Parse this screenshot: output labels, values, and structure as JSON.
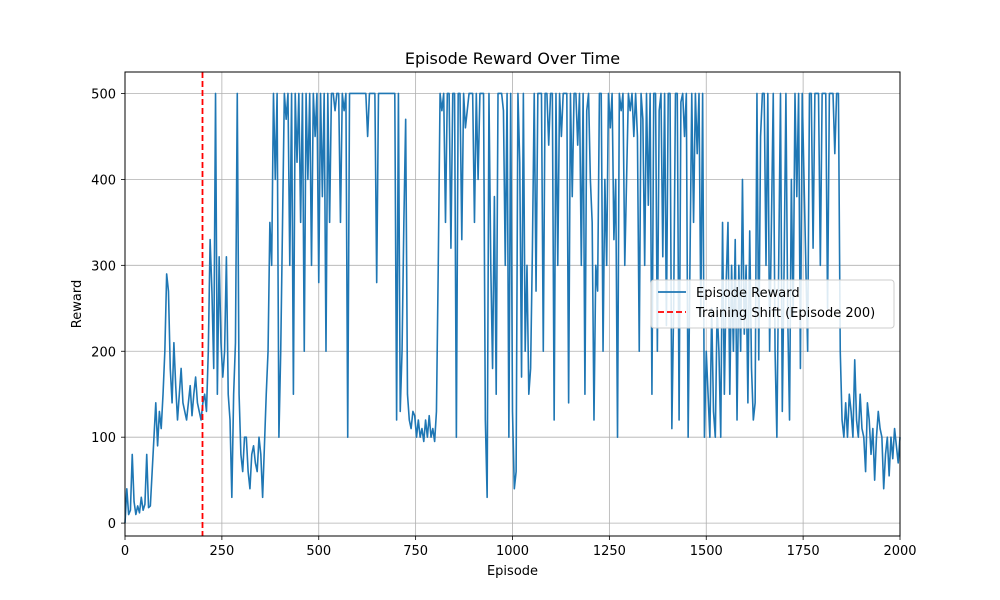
{
  "chart_data": {
    "type": "line",
    "title": "Episode Reward Over Time",
    "xlabel": "Episode",
    "ylabel": "Reward",
    "xlim": [
      0,
      2000
    ],
    "ylim": [
      -15,
      525
    ],
    "xticks": [
      0,
      250,
      500,
      750,
      1000,
      1250,
      1500,
      1750,
      2000
    ],
    "yticks": [
      0,
      100,
      200,
      300,
      400,
      500
    ],
    "grid": true,
    "legend_position": "center-right",
    "series": [
      {
        "name": "Episode Reward",
        "color": "#1f77b4",
        "style": "solid",
        "segments": [
          [
            0,
            40,
            10,
            15,
            80,
            25,
            10,
            20,
            12,
            30,
            15,
            22,
            80,
            18
          ],
          [
            20,
            60,
            100,
            140,
            90,
            130,
            110,
            150,
            200,
            290,
            270,
            180,
            140,
            210,
            160,
            120,
            150,
            180,
            140,
            130,
            120,
            140,
            160,
            125,
            150,
            170,
            140,
            130,
            120
          ],
          [
            140,
            150,
            130,
            200,
            330,
            270,
            180,
            500,
            150,
            310,
            210,
            170,
            200,
            310,
            150,
            120,
            30,
            150,
            210,
            500,
            150,
            80,
            60,
            100
          ],
          [
            100,
            60,
            40,
            80,
            90,
            70,
            60,
            100,
            80,
            30,
            90,
            150,
            200,
            350,
            300,
            500,
            400,
            500,
            100,
            200,
            350,
            500,
            470,
            500,
            300,
            500,
            150,
            500,
            420,
            500,
            350,
            500,
            200,
            500
          ],
          [
            400,
            500,
            300,
            500,
            450,
            500,
            280,
            500,
            380,
            500,
            200,
            500,
            350,
            500,
            500,
            480,
            500,
            500,
            350,
            500,
            480,
            500,
            100,
            500,
            500,
            500
          ],
          [
            500,
            500,
            500,
            500,
            500,
            500,
            500,
            450,
            500,
            500,
            500,
            500,
            280,
            500,
            500,
            500,
            500,
            500,
            500,
            500,
            500,
            500,
            500,
            120,
            500,
            130,
            200,
            350,
            470,
            150,
            120,
            110,
            130
          ],
          [
            125,
            100,
            120,
            100,
            110,
            95,
            120,
            100,
            125,
            100,
            110,
            95,
            130
          ],
          [
            300,
            500,
            480,
            500,
            350,
            500,
            500,
            320,
            500,
            500,
            100,
            500,
            500,
            330,
            500,
            460,
            480,
            500,
            500,
            500,
            350,
            500,
            400,
            500,
            500,
            500
          ],
          [
            120,
            30,
            500,
            300,
            180,
            380,
            150,
            500,
            500,
            500,
            480,
            300,
            500,
            100,
            500,
            130,
            40,
            60,
            500,
            420,
            170,
            500,
            200,
            300,
            150,
            180,
            320,
            500,
            270,
            500,
            500,
            500,
            200,
            500
          ],
          [
            500,
            440,
            500,
            500,
            120,
            500,
            300,
            500,
            450,
            500,
            500,
            500,
            140,
            500,
            380,
            500,
            500,
            440,
            500,
            300,
            500,
            150,
            480,
            500,
            400,
            350,
            120,
            300,
            270,
            500
          ],
          [
            500,
            200,
            400,
            300,
            500,
            460,
            500,
            330,
            400,
            100,
            500,
            480,
            500,
            300,
            400,
            500,
            480,
            500,
            450,
            500,
            450,
            200,
            500,
            470,
            300,
            500,
            370,
            500,
            150,
            500,
            500,
            200,
            480,
            500,
            310,
            500,
            230,
            500,
            500
          ],
          [
            110,
            250,
            500,
            500,
            120,
            490,
            500,
            450,
            500,
            100,
            300,
            500,
            350,
            500,
            430,
            500,
            240,
            500
          ],
          [
            100,
            200,
            150,
            100,
            250,
            130,
            100,
            250,
            200,
            100,
            350,
            150,
            280,
            350,
            150,
            300,
            200,
            330,
            120,
            300,
            200,
            400,
            220,
            300,
            140,
            340,
            180,
            120
          ],
          [
            140,
            500,
            190,
            450,
            500,
            500,
            300,
            500,
            200,
            350,
            500,
            200,
            100
          ],
          [
            300,
            500,
            130,
            300,
            500,
            240,
            120,
            400,
            240,
            500,
            380,
            500,
            180,
            500,
            400,
            300
          ],
          [
            200,
            500,
            500,
            320,
            500,
            500,
            500,
            300,
            500,
            500,
            500,
            250,
            500,
            500,
            500,
            430,
            500,
            500
          ],
          [
            200,
            120,
            100,
            140,
            100,
            150,
            130,
            100,
            190,
            120,
            100,
            150,
            110,
            100,
            60,
            140,
            120,
            80,
            110,
            50,
            100,
            130,
            110,
            100,
            40,
            80,
            100,
            55,
            100,
            75,
            110,
            90,
            70,
            100
          ]
        ]
      },
      {
        "name": "Training Shift (Episode 200)",
        "color": "#ff0000",
        "style": "dashed",
        "x": 200
      }
    ]
  }
}
